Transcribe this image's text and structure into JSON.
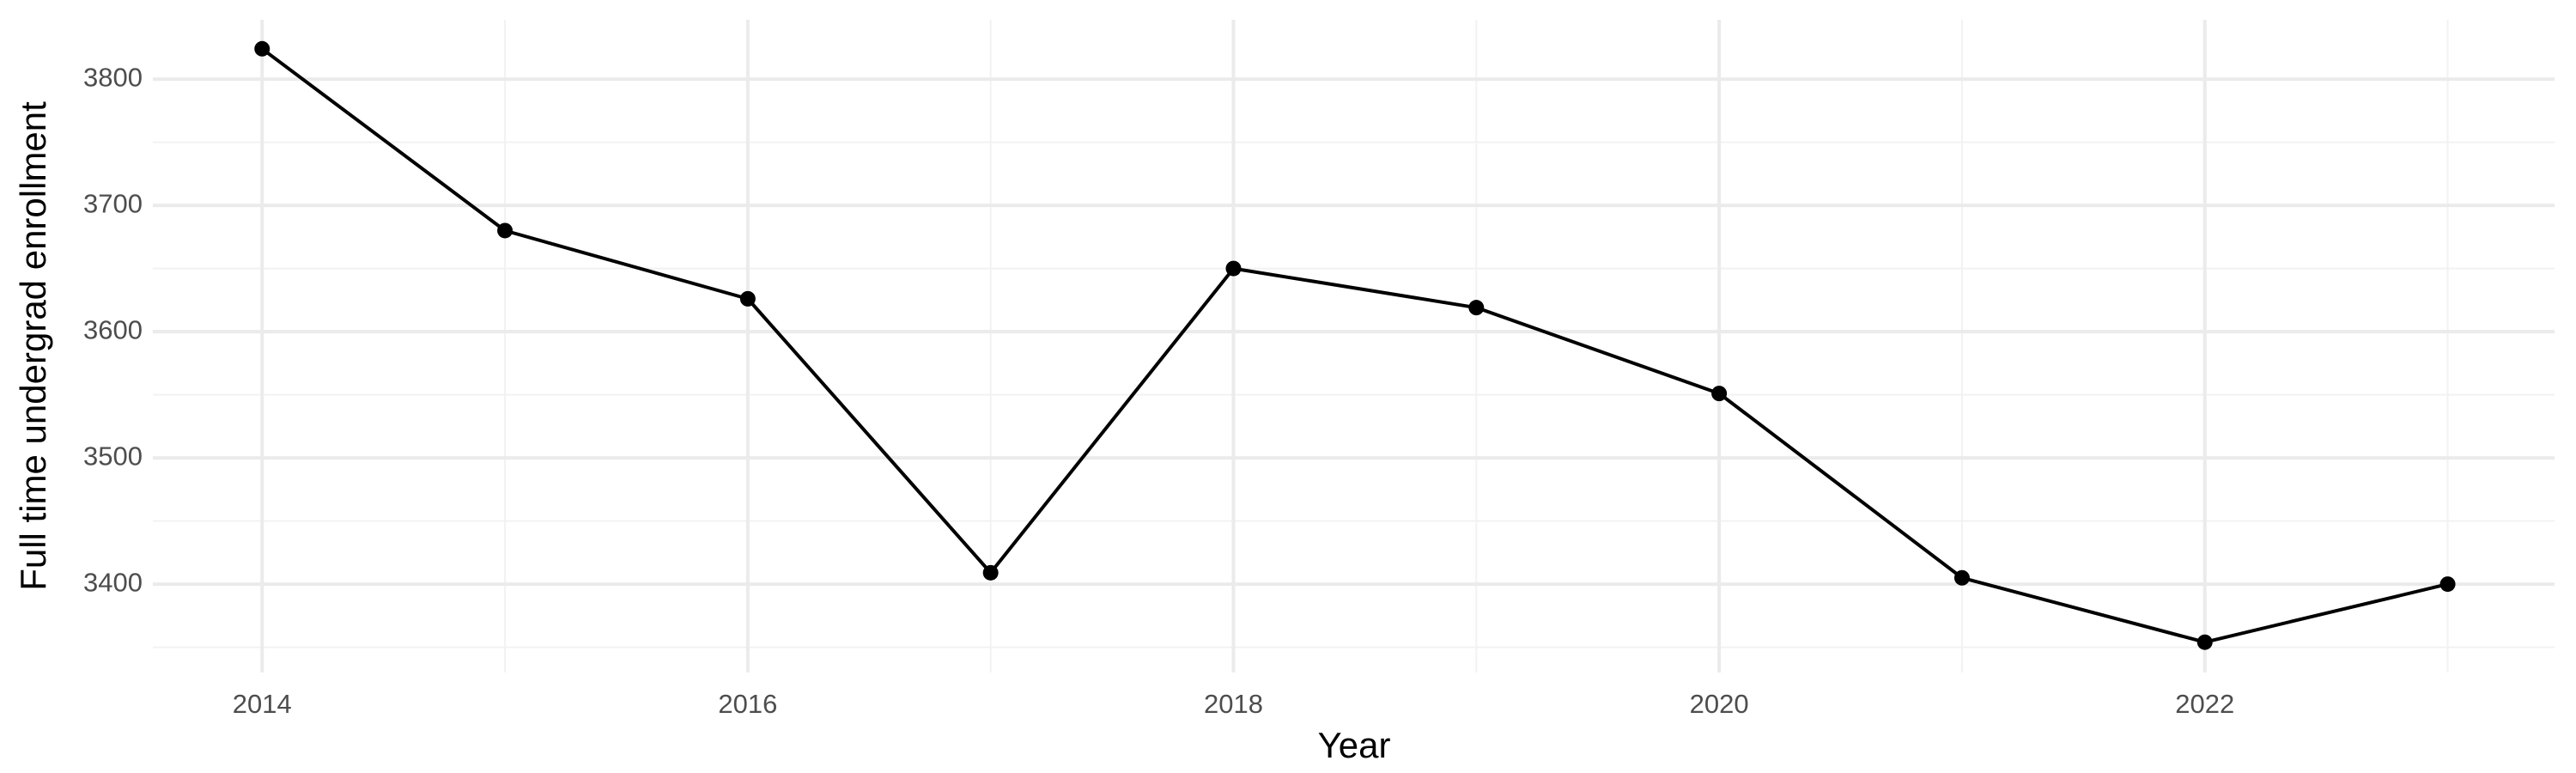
{
  "chart_data": {
    "type": "line",
    "x_label": "Year",
    "y_label": "Full time undergrad enrollment",
    "x": [
      2014,
      2015,
      2016,
      2017,
      2018,
      2019,
      2020,
      2021,
      2022,
      2023
    ],
    "series": [
      {
        "name": "Full time undergrad enrollment",
        "color": "#000000",
        "values": [
          3824,
          3680,
          3626,
          3409,
          3650,
          3619,
          3551,
          3405,
          3354,
          3400
        ]
      }
    ],
    "xlim": [
      2013.55,
      2023.44
    ],
    "xticks": [
      2014,
      2016,
      2018,
      2020,
      2022
    ],
    "ylim": [
      3330,
      3847
    ],
    "yticks": [
      3400,
      3500,
      3600,
      3700,
      3800
    ],
    "grid": true
  }
}
